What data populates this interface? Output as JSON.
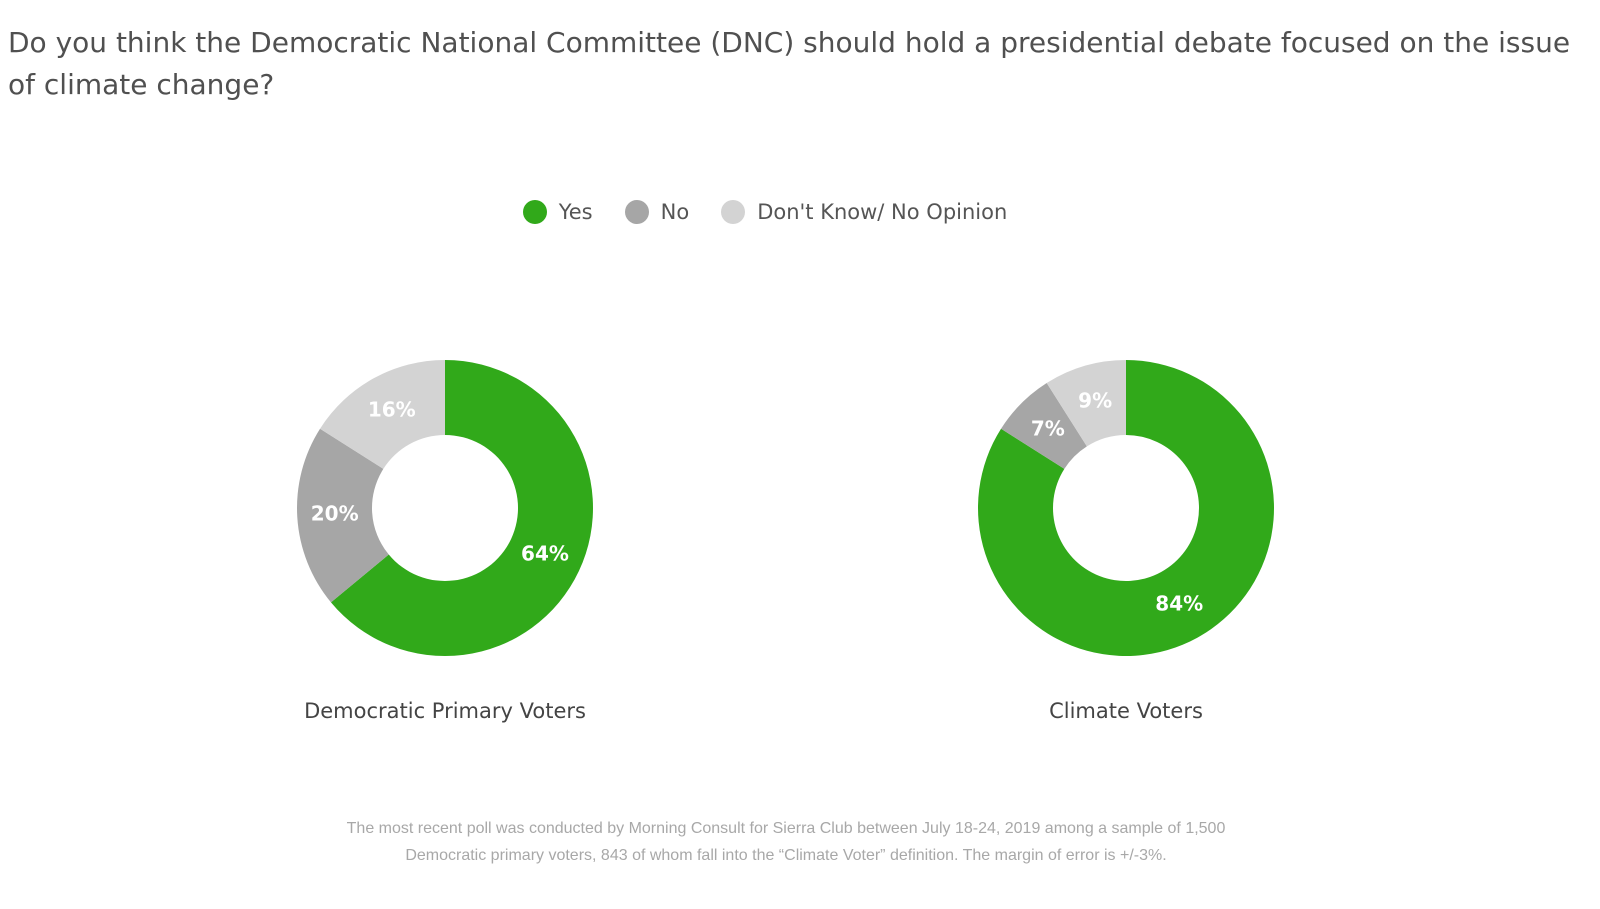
{
  "question": "Do you think the Democratic National Committee (DNC) should hold a presidential debate focused on the issue of climate change?",
  "legend": [
    {
      "label": "Yes",
      "color": "#31a91a"
    },
    {
      "label": "No",
      "color": "#a6a6a6"
    },
    {
      "label": "Don't Know/ No Opinion",
      "color": "#d3d3d3"
    }
  ],
  "chart_data": [
    {
      "type": "pie",
      "title": "Democratic Primary Voters",
      "slices": [
        {
          "name": "Yes",
          "value": 64,
          "label": "64%",
          "color": "#31a91a"
        },
        {
          "name": "No",
          "value": 20,
          "label": "20%",
          "color": "#a6a6a6"
        },
        {
          "name": "Don't Know/ No Opinion",
          "value": 16,
          "label": "16%",
          "color": "#d3d3d3"
        }
      ]
    },
    {
      "type": "pie",
      "title": "Climate Voters",
      "slices": [
        {
          "name": "Yes",
          "value": 84,
          "label": "84%",
          "color": "#31a91a"
        },
        {
          "name": "No",
          "value": 7,
          "label": "7%",
          "color": "#a6a6a6"
        },
        {
          "name": "Don't Know/ No Opinion",
          "value": 9,
          "label": "9%",
          "color": "#d3d3d3"
        }
      ]
    }
  ],
  "footnote": "The most recent poll was conducted by Morning Consult for Sierra Club between July 18-24, 2019 among a sample of 1,500 Democratic primary voters, 843 of whom fall into the “Climate Voter” definition. The margin of error is +/-3%."
}
